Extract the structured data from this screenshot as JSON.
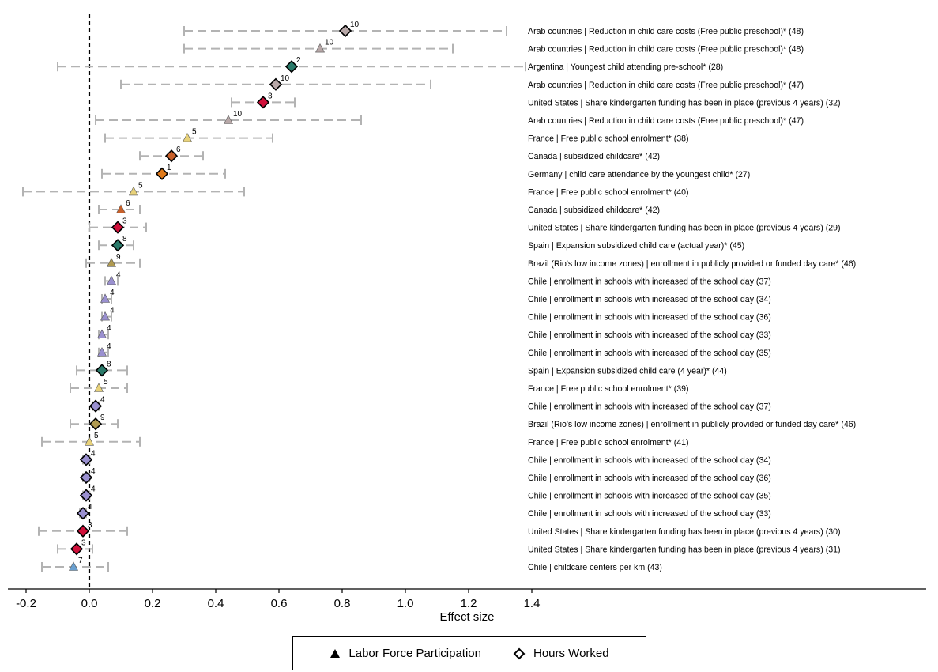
{
  "chart_data": {
    "type": "scatter",
    "subtype": "forest-plot",
    "xlabel": "Effect size",
    "xlim": [
      -0.25,
      1.45
    ],
    "xticks": [
      -0.2,
      0.0,
      0.2,
      0.4,
      0.6,
      0.8,
      1.0,
      1.2,
      1.4
    ],
    "xtick_labels": [
      "-0.2",
      "0.0",
      "0.2",
      "0.4",
      "0.6",
      "0.8",
      "1.0",
      "1.2",
      "1.4"
    ],
    "reference_line_x": 0,
    "legend": {
      "placement": "bottom",
      "entries": [
        {
          "marker": "triangle",
          "label": "Labor Force Participation"
        },
        {
          "marker": "diamond",
          "label": "Hours Worked"
        }
      ]
    },
    "category_colors": {
      "1": "#e07a1a",
      "2": "#2a7a6a",
      "3": "#d0103a",
      "4": "#9a90d0",
      "5": "#e8d27a",
      "6": "#c8602a",
      "7": "#6aa0d0",
      "8": "#2a7a6a",
      "9": "#b09a50",
      "10": "#b8a8a8"
    },
    "studies": [
      {
        "label": "Arab countries | Reduction in child care costs (Free public preschool)* (48)",
        "estimate": 0.81,
        "ci": [
          0.3,
          1.32
        ],
        "marker": "diamond",
        "tag": "10"
      },
      {
        "label": "Arab countries | Reduction in child care costs (Free public preschool)* (48)",
        "estimate": 0.73,
        "ci": [
          0.3,
          1.15
        ],
        "marker": "triangle",
        "tag": "10"
      },
      {
        "label": "Argentina | Youngest child attending pre-school* (28)",
        "estimate": 0.64,
        "ci": [
          -0.1,
          1.38
        ],
        "marker": "diamond",
        "tag": "2"
      },
      {
        "label": "Arab countries | Reduction in child care costs (Free public preschool)* (47)",
        "estimate": 0.59,
        "ci": [
          0.1,
          1.08
        ],
        "marker": "diamond",
        "tag": "10"
      },
      {
        "label": "United States | Share kindergarten funding has been in place (previous 4 years) (32)",
        "estimate": 0.55,
        "ci": [
          0.45,
          0.65
        ],
        "marker": "diamond",
        "tag": "3"
      },
      {
        "label": "Arab countries | Reduction in child care costs (Free public preschool)* (47)",
        "estimate": 0.44,
        "ci": [
          0.02,
          0.86
        ],
        "marker": "triangle",
        "tag": "10"
      },
      {
        "label": "France | Free public school enrolment* (38)",
        "estimate": 0.31,
        "ci": [
          0.05,
          0.58
        ],
        "marker": "triangle",
        "tag": "5"
      },
      {
        "label": "Canada | subsidized childcare* (42)",
        "estimate": 0.26,
        "ci": [
          0.16,
          0.36
        ],
        "marker": "diamond",
        "tag": "6"
      },
      {
        "label": "Germany | child care attendance by the youngest child* (27)",
        "estimate": 0.23,
        "ci": [
          0.04,
          0.43
        ],
        "marker": "diamond",
        "tag": "1"
      },
      {
        "label": "France | Free public school enrolment* (40)",
        "estimate": 0.14,
        "ci": [
          -0.21,
          0.49
        ],
        "marker": "triangle",
        "tag": "5"
      },
      {
        "label": "Canada | subsidized childcare* (42)",
        "estimate": 0.1,
        "ci": [
          0.03,
          0.16
        ],
        "marker": "triangle",
        "tag": "6"
      },
      {
        "label": "United States | Share kindergarten funding has been in place (previous 4 years) (29)",
        "estimate": 0.09,
        "ci": [
          0.0,
          0.18
        ],
        "marker": "diamond",
        "tag": "3"
      },
      {
        "label": "Spain | Expansion subsidized child care (actual year)* (45)",
        "estimate": 0.09,
        "ci": [
          0.03,
          0.14
        ],
        "marker": "diamond",
        "tag": "8"
      },
      {
        "label": "Brazil (Rio's low income zones) | enrollment in publicly provided or funded day care* (46)",
        "estimate": 0.07,
        "ci": [
          -0.01,
          0.16
        ],
        "marker": "triangle",
        "tag": "9"
      },
      {
        "label": "Chile | enrollment in schools with increased of the school day (37)",
        "estimate": 0.07,
        "ci": [
          0.05,
          0.09
        ],
        "marker": "triangle",
        "tag": "4"
      },
      {
        "label": "Chile | enrollment in schools with increased of the school day (34)",
        "estimate": 0.05,
        "ci": [
          0.04,
          0.07
        ],
        "marker": "triangle",
        "tag": "4"
      },
      {
        "label": "Chile | enrollment in schools with increased of the school day (36)",
        "estimate": 0.05,
        "ci": [
          0.04,
          0.07
        ],
        "marker": "triangle",
        "tag": "4"
      },
      {
        "label": "Chile | enrollment in schools with increased of the school day (33)",
        "estimate": 0.04,
        "ci": [
          0.03,
          0.06
        ],
        "marker": "triangle",
        "tag": "4"
      },
      {
        "label": "Chile | enrollment in schools with increased of the school day (35)",
        "estimate": 0.04,
        "ci": [
          0.03,
          0.06
        ],
        "marker": "triangle",
        "tag": "4"
      },
      {
        "label": "Spain | Expansion subsidized child care (4 year)* (44)",
        "estimate": 0.04,
        "ci": [
          -0.04,
          0.12
        ],
        "marker": "diamond",
        "tag": "8"
      },
      {
        "label": "France | Free public school enrolment* (39)",
        "estimate": 0.03,
        "ci": [
          -0.06,
          0.12
        ],
        "marker": "triangle",
        "tag": "5"
      },
      {
        "label": "Chile | enrollment in schools with increased of the school day (37)",
        "estimate": 0.02,
        "ci": [
          0.01,
          0.03
        ],
        "marker": "diamond",
        "tag": "4"
      },
      {
        "label": "Brazil (Rio's low income zones) | enrollment in publicly provided or funded day care* (46)",
        "estimate": 0.02,
        "ci": [
          -0.06,
          0.09
        ],
        "marker": "diamond",
        "tag": "9"
      },
      {
        "label": "France | Free public school enrolment* (41)",
        "estimate": 0.0,
        "ci": [
          -0.15,
          0.16
        ],
        "marker": "triangle",
        "tag": "5"
      },
      {
        "label": "Chile | enrollment in schools with increased of the school day (34)",
        "estimate": -0.01,
        "ci": [
          -0.02,
          0.0
        ],
        "marker": "diamond",
        "tag": "4"
      },
      {
        "label": "Chile | enrollment in schools with increased of the school day (36)",
        "estimate": -0.01,
        "ci": [
          -0.02,
          0.0
        ],
        "marker": "diamond",
        "tag": "4"
      },
      {
        "label": "Chile | enrollment in schools with increased of the school day (35)",
        "estimate": -0.01,
        "ci": [
          -0.02,
          0.0
        ],
        "marker": "diamond",
        "tag": "4"
      },
      {
        "label": "Chile | enrollment in schools with increased of the school day (33)",
        "estimate": -0.02,
        "ci": [
          -0.03,
          -0.01
        ],
        "marker": "diamond",
        "tag": "4"
      },
      {
        "label": "United States | Share kindergarten funding has been in place (previous 4 years) (30)",
        "estimate": -0.02,
        "ci": [
          -0.16,
          0.12
        ],
        "marker": "diamond",
        "tag": "3"
      },
      {
        "label": "United States | Share kindergarten funding has been in place (previous 4 years) (31)",
        "estimate": -0.04,
        "ci": [
          -0.1,
          0.01
        ],
        "marker": "diamond",
        "tag": "3"
      },
      {
        "label": "Chile | childcare centers per km (43)",
        "estimate": -0.05,
        "ci": [
          -0.15,
          0.06
        ],
        "marker": "triangle",
        "tag": "7"
      }
    ]
  }
}
